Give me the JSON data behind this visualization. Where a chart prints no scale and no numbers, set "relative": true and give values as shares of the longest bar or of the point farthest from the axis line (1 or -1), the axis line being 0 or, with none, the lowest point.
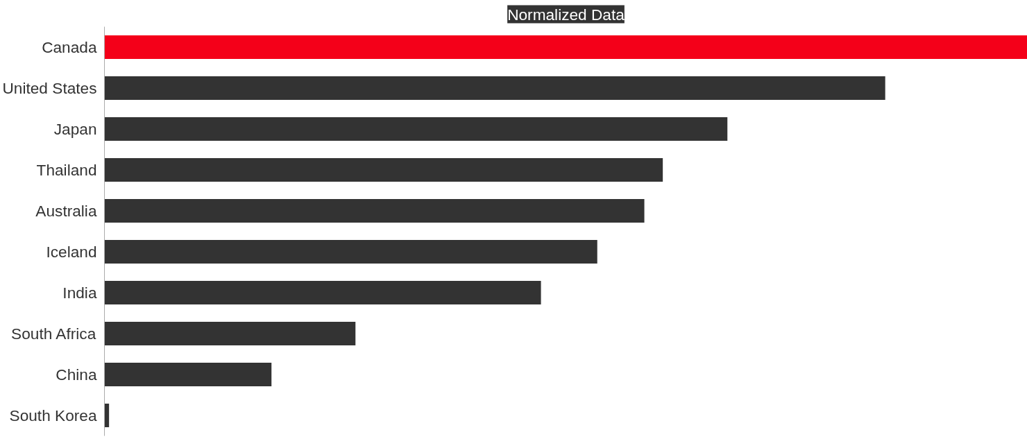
{
  "chart_data": {
    "type": "bar",
    "title": "Normalized Data",
    "orientation": "horizontal",
    "relative": true,
    "categories": [
      "Canada",
      "United States",
      "Japan",
      "Thailand",
      "Australia",
      "Iceland",
      "India",
      "South Africa",
      "China",
      "South Korea"
    ],
    "values": [
      1,
      0.846,
      0.675,
      0.605,
      0.585,
      0.534,
      0.473,
      0.272,
      0.181,
      0.005
    ],
    "colors": [
      "#f40019",
      "#333333",
      "#333333",
      "#333333",
      "#333333",
      "#333333",
      "#333333",
      "#333333",
      "#333333",
      "#333333"
    ],
    "grid": false
  }
}
